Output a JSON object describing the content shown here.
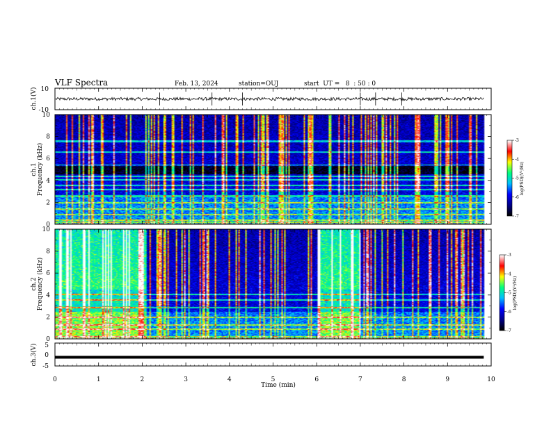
{
  "header": {
    "title": "VLF Spectra",
    "date": "Feb. 13, 2024",
    "station": "station=OUJ",
    "start_ut": "start  UT =   8  : 50 : 0"
  },
  "colors": {
    "ink": "#000000",
    "background": "#ffffff",
    "colormap": [
      "#000000",
      "#00008b",
      "#0000ff",
      "#00bfff",
      "#00ff7f",
      "#ffff00",
      "#ff0000",
      "#ffffff"
    ]
  },
  "chart_data": [
    {
      "type": "line",
      "panel": "ch.1 waveform",
      "ylabel": "ch.1(V)",
      "ylim": [
        -10,
        10
      ],
      "yticks": [
        "10",
        "-10"
      ],
      "xlim": [
        0,
        10
      ],
      "baseline_value": 0,
      "noise_amplitude": 2,
      "spikes_min": [
        2.4,
        3.6,
        4.3,
        7.0,
        7.35,
        7.95
      ]
    },
    {
      "type": "heatmap",
      "panel": "ch.1 spectrogram",
      "ylabel": "ch.1\nFrequency (kHz)",
      "ylim": [
        0,
        10
      ],
      "yticks": [
        "0",
        "2",
        "4",
        "6",
        "8",
        "10"
      ],
      "xlim": [
        0,
        10
      ],
      "data_end_min": 9.83,
      "colorbar": {
        "label": "log(PSD)(V²/Hz)",
        "range": [
          -7,
          -3
        ],
        "ticks": [
          "-3",
          "-4",
          "-5",
          "-6",
          "-7"
        ]
      },
      "description_values": {
        "dark_band_khz": [
          4.6,
          5.4
        ],
        "strong_lines_khz": [
          0.2,
          0.4,
          0.9,
          1.4,
          2.0,
          2.6,
          3.2,
          3.6,
          4.1,
          4.4,
          5.4,
          6.6,
          7.6
        ]
      }
    },
    {
      "type": "heatmap",
      "panel": "ch.2 spectrogram",
      "ylabel": "ch.2\nFrequency (kHz)",
      "ylim": [
        0,
        10
      ],
      "yticks": [
        "0",
        "2",
        "4",
        "6",
        "8",
        "10"
      ],
      "xlim": [
        0,
        10
      ],
      "data_end_min": 9.83,
      "colorbar": {
        "label": "log(PSD)(V²/Hz)",
        "range": [
          -7,
          -3
        ],
        "ticks": [
          "-3",
          "-4",
          "-5",
          "-6",
          "-7"
        ]
      },
      "description_values": {
        "high_activity_intervals_min": [
          [
            0,
            2.1
          ],
          [
            6.0,
            7.0
          ]
        ],
        "strong_lines_khz": [
          0.2,
          0.9,
          1.3,
          2.0,
          2.9,
          3.6,
          4.1
        ]
      }
    },
    {
      "type": "line",
      "panel": "ch.3 waveform",
      "ylabel": "ch.3(V)",
      "ylim": [
        -5,
        5
      ],
      "yticks": [
        "5",
        "0",
        "-5"
      ],
      "xlim": [
        0,
        10
      ],
      "value": -1.2
    }
  ],
  "xaxis": {
    "label": "Time (min)",
    "ticks": [
      "0",
      "1",
      "2",
      "3",
      "4",
      "5",
      "6",
      "7",
      "8",
      "9",
      "10"
    ]
  }
}
